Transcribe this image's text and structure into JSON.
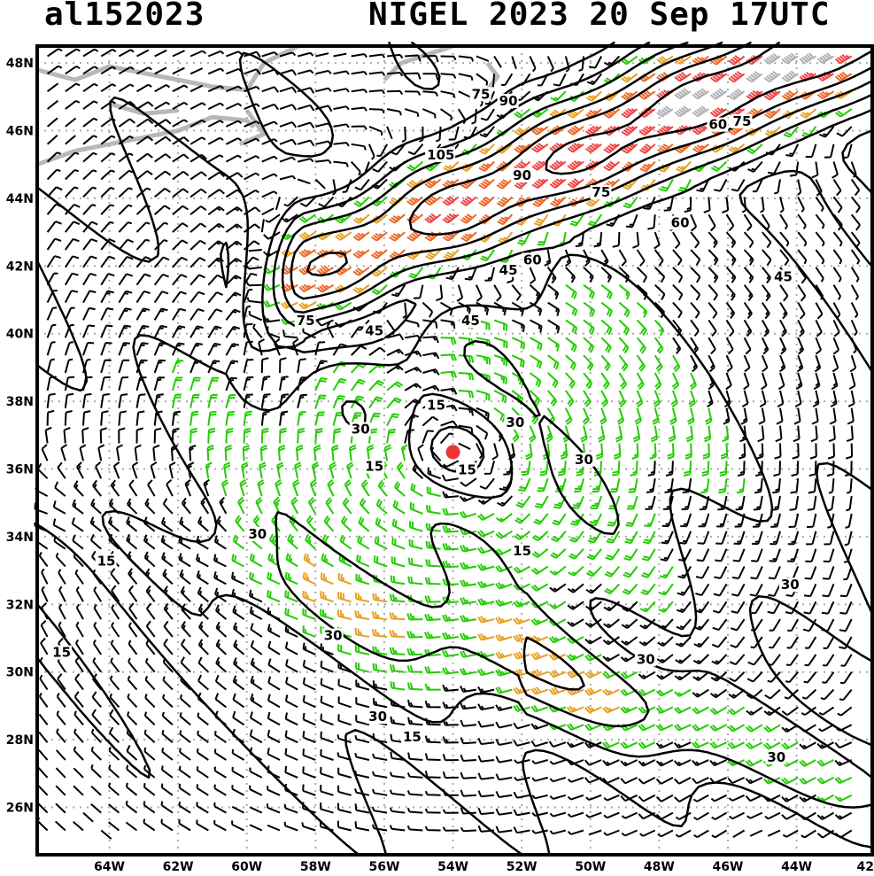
{
  "header": {
    "storm_id": "al152023",
    "title": "NIGEL 2023 20 Sep 17UTC"
  },
  "chart_data": {
    "type": "map",
    "description_type": "wind barbs with isotach contours (kt)",
    "lon_ticks": [
      "64W",
      "62W",
      "60W",
      "58W",
      "56W",
      "54W",
      "52W",
      "50W",
      "48W",
      "46W",
      "44W",
      "42"
    ],
    "lat_ticks": [
      "48N",
      "46N",
      "44N",
      "42N",
      "40N",
      "38N",
      "36N",
      "34N",
      "32N",
      "30N",
      "28N",
      "26N"
    ],
    "lon_range": [
      -66.1,
      -41.8
    ],
    "lat_range": [
      24.6,
      48.5
    ],
    "storm_center": {
      "lon": -54.0,
      "lat": 36.5
    },
    "contour_levels": [
      15,
      30,
      45,
      60,
      75,
      90,
      105
    ],
    "contour_labels": [
      "75",
      "90",
      "105",
      "90",
      "75",
      "60",
      "75",
      "60",
      "60",
      "45",
      "45",
      "75",
      "45",
      "45",
      "30",
      "15",
      "30",
      "30",
      "30",
      "15",
      "15",
      "30",
      "30",
      "15",
      "30",
      "30",
      "15",
      "15",
      "15",
      "30"
    ],
    "barb_colors": {
      "lt34": "#000000",
      "34to50": "#22cc00",
      "50to64": "#e8a020",
      "64to83": "#ee6622",
      "83to96": "#ee4444",
      "ge96": "#b0b0b0"
    },
    "storm_marker_color": "#ee3333",
    "land_color": "#b8b8b8"
  }
}
